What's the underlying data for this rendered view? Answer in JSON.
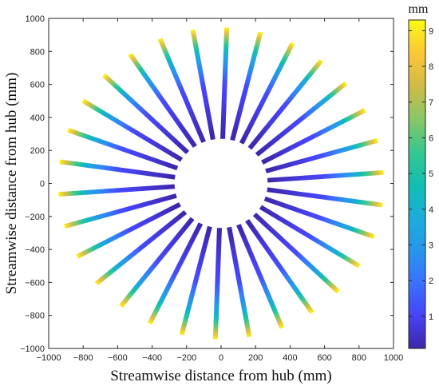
{
  "chart_data": {
    "type": "polar-deflection-map",
    "xlabel": "Streamwise distance from hub (mm)",
    "ylabel": "Streamwise distance from hub (mm)",
    "xlim": [
      -1000,
      1000
    ],
    "ylim": [
      -1000,
      1000
    ],
    "xticks": [
      -1000,
      -800,
      -600,
      -400,
      -200,
      0,
      200,
      400,
      600,
      800,
      1000
    ],
    "yticks": [
      -1000,
      -800,
      -600,
      -400,
      -200,
      0,
      200,
      400,
      600,
      800,
      1000
    ],
    "xtick_labels": [
      "−1000",
      "−800",
      "−600",
      "−400",
      "−200",
      "0",
      "200",
      "400",
      "600",
      "800",
      "1000"
    ],
    "ytick_labels": [
      "−1000",
      "−800",
      "−600",
      "−400",
      "−200",
      "0",
      "200",
      "400",
      "600",
      "800",
      "1000"
    ],
    "grid": false,
    "hub_radius_mm": 270,
    "tip_radius_mm": 945,
    "blade_count": 30,
    "first_blade_angle_deg": 4,
    "blade_spacing_deg": 12,
    "blade_width_mm": 28,
    "deflection_profile": {
      "span_fraction": [
        0.0,
        0.5,
        0.75,
        0.9,
        1.0
      ],
      "deflection_mm": [
        0.1,
        1.2,
        3.5,
        6.5,
        9.2
      ]
    },
    "colorbar": {
      "label": "mm",
      "range": [
        0.1,
        9.3
      ],
      "ticks": [
        1,
        2,
        3,
        4,
        5,
        6,
        7,
        8,
        9
      ],
      "tick_labels": [
        "1",
        "2",
        "3",
        "4",
        "5",
        "6",
        "7",
        "8",
        "9"
      ],
      "colormap": [
        "#3e26a8",
        "#4743f5",
        "#3a71fe",
        "#2797eb",
        "#1cadd8",
        "#11bfb2",
        "#37c78f",
        "#8ac766",
        "#d1ba46",
        "#fcc737",
        "#f9fb15"
      ]
    }
  }
}
